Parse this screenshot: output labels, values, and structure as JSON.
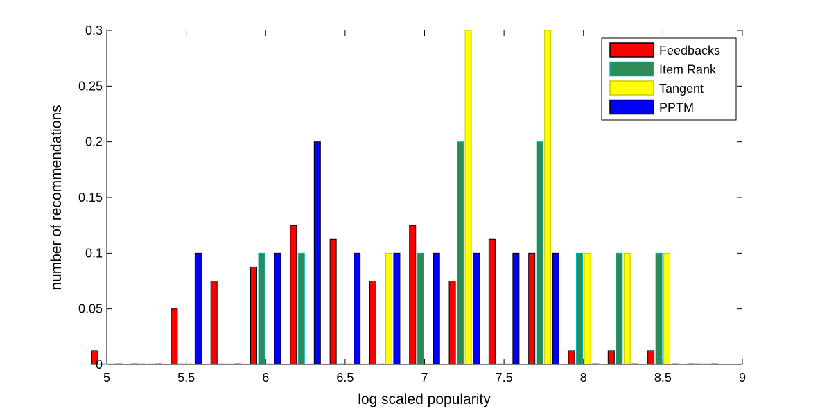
{
  "chart_data": {
    "type": "bar",
    "xlabel": "log scaled popularity",
    "ylabel": "number of recommendations",
    "xlim": [
      5,
      9
    ],
    "ylim": [
      0,
      0.3
    ],
    "x_ticks": [
      "5",
      "5.5",
      "6",
      "6.5",
      "7",
      "7.5",
      "8",
      "8.5",
      "9"
    ],
    "y_ticks": [
      "0",
      "0.05",
      "0.1",
      "0.15",
      "0.2",
      "0.25",
      "0.3"
    ],
    "x_tick_values": [
      5,
      5.5,
      6,
      6.5,
      7,
      7.5,
      8,
      8.5,
      9
    ],
    "y_tick_values": [
      0,
      0.05,
      0.1,
      0.15,
      0.2,
      0.25,
      0.3
    ],
    "legend_position": "top-right",
    "grid": false,
    "x": [
      5.0,
      5.25,
      5.5,
      5.75,
      6.0,
      6.25,
      6.5,
      6.75,
      7.0,
      7.25,
      7.5,
      7.75,
      8.0,
      8.25,
      8.5,
      8.75
    ],
    "series": [
      {
        "name": "Feedbacks",
        "color": "#ff0000",
        "stroke": "#000000",
        "values": [
          0.0125,
          0,
          0.05,
          0.075,
          0.0875,
          0.125,
          0.1125,
          0.075,
          0.125,
          0.075,
          0.1125,
          0.1,
          0.0125,
          0.0125,
          0.0125,
          0
        ]
      },
      {
        "name": "Item Rank",
        "color": "#2e8b57",
        "stroke": "#00b2b2",
        "values": [
          0,
          0,
          0,
          0,
          0.1,
          0.1,
          0,
          0,
          0.1,
          0.2,
          0,
          0.2,
          0.1,
          0.1,
          0.1,
          0
        ]
      },
      {
        "name": "Tangent",
        "color": "#ffff00",
        "stroke": "#c8c800",
        "values": [
          0,
          0,
          0,
          0,
          0,
          0,
          0,
          0.1,
          0,
          0.3,
          0,
          0.3,
          0.1,
          0.1,
          0.1,
          0
        ]
      },
      {
        "name": "PPTM",
        "color": "#0000ff",
        "stroke": "#000000",
        "values": [
          0,
          0,
          0.1,
          0,
          0.1,
          0.2,
          0.1,
          0.1,
          0.1,
          0.1,
          0.1,
          0.1,
          0,
          0,
          0,
          0
        ]
      }
    ]
  }
}
